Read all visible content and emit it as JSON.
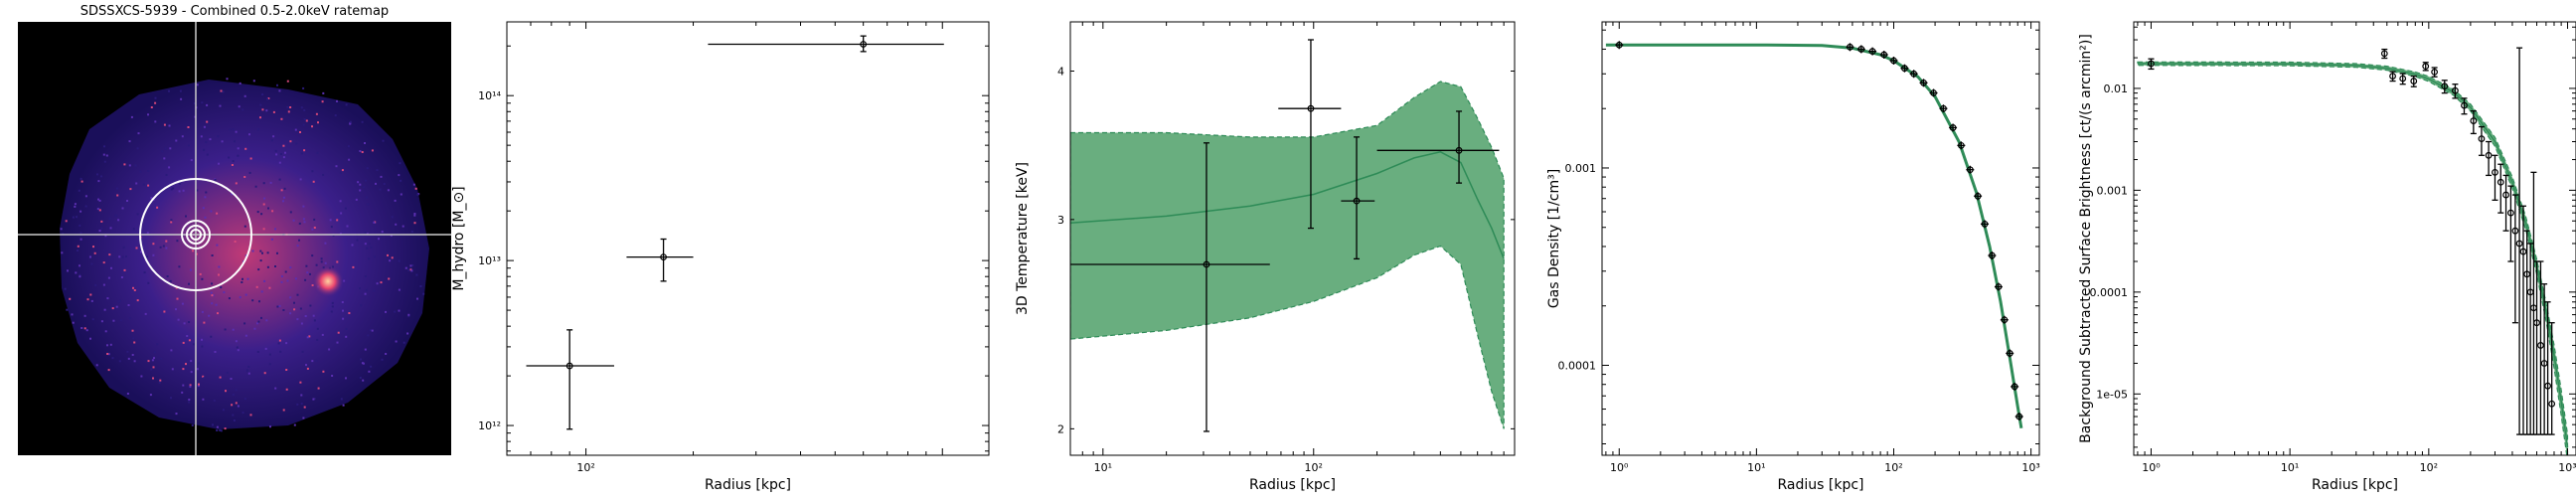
{
  "colors": {
    "model": "#2e8b57",
    "band": "#69ae7f",
    "band_edge": "#2e8b57",
    "points": "#000000",
    "crosshair": "#cccccc",
    "circle": "#ffffff"
  },
  "chart_data": [
    {
      "type": "image",
      "title": "SDSSXCS-5939 - Combined 0.5-2.0keV ratemap",
      "colormap": "magma"
    },
    {
      "type": "scatter",
      "xlabel": "Radius [kpc]",
      "ylabel": "M_hydro [M_⊙]",
      "xscale": "log",
      "yscale": "log",
      "xlim": [
        60,
        1350
      ],
      "ylim": [
        660000000000.0,
        280000000000000.0
      ],
      "xticks": [
        {
          "v": 100,
          "label": "10²"
        }
      ],
      "yticks": [
        {
          "v": 1000000000000.0,
          "label": "10¹²"
        },
        {
          "v": 10000000000000.0,
          "label": "10¹³"
        },
        {
          "v": 100000000000000.0,
          "label": "10¹⁴"
        }
      ],
      "points": [
        {
          "x": 90,
          "xlo": 68,
          "xhi": 120,
          "y": 2300000000000.0,
          "ylo": 950000000000.0,
          "yhi": 3800000000000.0
        },
        {
          "x": 165,
          "xlo": 130,
          "xhi": 200,
          "y": 10500000000000.0,
          "ylo": 7500000000000.0,
          "yhi": 13500000000000.0
        },
        {
          "x": 600,
          "xlo": 220,
          "xhi": 1010,
          "y": 205000000000000.0,
          "ylo": 185000000000000.0,
          "yhi": 230000000000000.0
        }
      ]
    },
    {
      "type": "line",
      "xlabel": "Radius [kpc]",
      "ylabel": "3D Temperature [keV]",
      "xscale": "log",
      "yscale": "log",
      "xlim": [
        7,
        900
      ],
      "ylim": [
        1.9,
        4.4
      ],
      "xticks": [
        {
          "v": 10,
          "label": "10¹"
        },
        {
          "v": 100,
          "label": "10²"
        }
      ],
      "yticks": [
        {
          "v": 2,
          "label": "2"
        },
        {
          "v": 3,
          "label": "3"
        },
        {
          "v": 4,
          "label": "4"
        }
      ],
      "model": {
        "x": [
          7,
          20,
          50,
          100,
          200,
          300,
          400,
          500,
          600,
          700,
          800
        ],
        "y": [
          2.98,
          3.02,
          3.08,
          3.15,
          3.28,
          3.38,
          3.42,
          3.35,
          3.12,
          2.95,
          2.78
        ],
        "lo": [
          2.38,
          2.42,
          2.48,
          2.56,
          2.68,
          2.8,
          2.85,
          2.75,
          2.4,
          2.15,
          2.0
        ],
        "hi": [
          3.55,
          3.55,
          3.52,
          3.52,
          3.6,
          3.8,
          3.92,
          3.88,
          3.65,
          3.45,
          3.25
        ]
      },
      "points": [
        {
          "x": 31,
          "xlo": 7,
          "xhi": 62,
          "y": 2.75,
          "ylo": 1.99,
          "yhi": 3.48
        },
        {
          "x": 97,
          "xlo": 68,
          "xhi": 135,
          "y": 3.72,
          "ylo": 2.95,
          "yhi": 4.25
        },
        {
          "x": 160,
          "xlo": 135,
          "xhi": 195,
          "y": 3.11,
          "ylo": 2.78,
          "yhi": 3.52
        },
        {
          "x": 490,
          "xlo": 200,
          "xhi": 760,
          "y": 3.43,
          "ylo": 3.22,
          "yhi": 3.7
        }
      ]
    },
    {
      "type": "line",
      "xlabel": "Radius [kpc]",
      "ylabel": "Gas Density [1/cm³]",
      "xscale": "log",
      "yscale": "log",
      "xlim": [
        0.75,
        1150
      ],
      "ylim": [
        3.5e-05,
        0.0055
      ],
      "xticks": [
        {
          "v": 1,
          "label": "10⁰"
        },
        {
          "v": 10,
          "label": "10¹"
        },
        {
          "v": 100,
          "label": "10²"
        },
        {
          "v": 1000,
          "label": "10³"
        }
      ],
      "yticks": [
        {
          "v": 0.0001,
          "label": "0.0001"
        },
        {
          "v": 0.001,
          "label": "0.001"
        }
      ],
      "model": {
        "x": [
          0.8,
          1,
          10,
          30,
          50,
          80,
          100,
          150,
          200,
          300,
          400,
          500,
          600,
          700,
          800,
          850
        ],
        "y": [
          0.0042,
          0.0042,
          0.0042,
          0.00418,
          0.00405,
          0.00375,
          0.0035,
          0.0029,
          0.0023,
          0.00135,
          0.00075,
          0.0004,
          0.00021,
          0.00011,
          6.2e-05,
          4.8e-05
        ]
      },
      "points": [
        {
          "x": 1,
          "y": 0.0042
        },
        {
          "x": 48,
          "y": 0.0041
        },
        {
          "x": 58,
          "y": 0.004
        },
        {
          "x": 70,
          "y": 0.0039
        },
        {
          "x": 85,
          "y": 0.00375
        },
        {
          "x": 100,
          "y": 0.0035
        },
        {
          "x": 120,
          "y": 0.0032
        },
        {
          "x": 140,
          "y": 0.003
        },
        {
          "x": 165,
          "y": 0.0027
        },
        {
          "x": 195,
          "y": 0.0024
        },
        {
          "x": 230,
          "y": 0.002
        },
        {
          "x": 270,
          "y": 0.0016
        },
        {
          "x": 310,
          "y": 0.0013
        },
        {
          "x": 360,
          "y": 0.00098
        },
        {
          "x": 410,
          "y": 0.00072
        },
        {
          "x": 460,
          "y": 0.00052
        },
        {
          "x": 520,
          "y": 0.00036
        },
        {
          "x": 580,
          "y": 0.00025
        },
        {
          "x": 640,
          "y": 0.00017
        },
        {
          "x": 700,
          "y": 0.000115
        },
        {
          "x": 760,
          "y": 7.8e-05
        },
        {
          "x": 820,
          "y": 5.5e-05
        }
      ]
    },
    {
      "type": "line",
      "xlabel": "Radius [kpc]",
      "ylabel": "Background Subtracted Surface Brightness [ct/(s arcmin²)]",
      "xscale": "log",
      "yscale": "log",
      "xlim": [
        0.75,
        1150
      ],
      "ylim": [
        2.5e-06,
        0.045
      ],
      "xticks": [
        {
          "v": 1,
          "label": "10⁰"
        },
        {
          "v": 10,
          "label": "10¹"
        },
        {
          "v": 100,
          "label": "10²"
        },
        {
          "v": 1000,
          "label": "10³"
        }
      ],
      "yticks": [
        {
          "v": 1e-05,
          "label": "1e-05"
        },
        {
          "v": 0.0001,
          "label": "0.0001"
        },
        {
          "v": 0.001,
          "label": "0.001"
        },
        {
          "v": 0.01,
          "label": "0.01"
        }
      ],
      "model": {
        "x": [
          0.8,
          1,
          10,
          30,
          50,
          80,
          100,
          150,
          200,
          300,
          400,
          500,
          600,
          700,
          800,
          900,
          1000
        ],
        "y": [
          0.0175,
          0.0175,
          0.0174,
          0.0168,
          0.0158,
          0.0138,
          0.0124,
          0.0092,
          0.0065,
          0.003,
          0.0012,
          0.00048,
          0.00018,
          6.5e-05,
          2.4e-05,
          8.5e-06,
          3e-06
        ],
        "lo": [
          0.0168,
          0.0168,
          0.0167,
          0.0161,
          0.0151,
          0.0131,
          0.0117,
          0.0086,
          0.006,
          0.0027,
          0.00105,
          0.00041,
          0.00015,
          5.2e-05,
          1.8e-05,
          6.2e-06,
          2.2e-06
        ],
        "hi": [
          0.0182,
          0.0182,
          0.0181,
          0.0175,
          0.0165,
          0.0145,
          0.0131,
          0.0098,
          0.007,
          0.0033,
          0.00135,
          0.00055,
          0.00021,
          7.8e-05,
          3e-05,
          1.1e-05,
          4e-06
        ]
      },
      "points": [
        {
          "x": 1,
          "y": 0.0175,
          "ylo": 0.0155,
          "yhi": 0.0195
        },
        {
          "x": 48,
          "y": 0.022,
          "ylo": 0.0198,
          "yhi": 0.0242
        },
        {
          "x": 55,
          "y": 0.0132,
          "ylo": 0.0118,
          "yhi": 0.0146
        },
        {
          "x": 65,
          "y": 0.0125,
          "ylo": 0.011,
          "yhi": 0.014
        },
        {
          "x": 78,
          "y": 0.0118,
          "ylo": 0.0104,
          "yhi": 0.0132
        },
        {
          "x": 95,
          "y": 0.0165,
          "ylo": 0.015,
          "yhi": 0.018
        },
        {
          "x": 110,
          "y": 0.0145,
          "ylo": 0.013,
          "yhi": 0.016
        },
        {
          "x": 130,
          "y": 0.0105,
          "ylo": 0.009,
          "yhi": 0.012
        },
        {
          "x": 155,
          "y": 0.0095,
          "ylo": 0.008,
          "yhi": 0.011
        },
        {
          "x": 180,
          "y": 0.0068,
          "ylo": 0.0056,
          "yhi": 0.008
        },
        {
          "x": 210,
          "y": 0.0048,
          "ylo": 0.0036,
          "yhi": 0.006
        },
        {
          "x": 240,
          "y": 0.0032,
          "ylo": 0.0022,
          "yhi": 0.0042
        },
        {
          "x": 270,
          "y": 0.0022,
          "ylo": 0.0014,
          "yhi": 0.003
        },
        {
          "x": 300,
          "y": 0.0015,
          "ylo": 0.0008,
          "yhi": 0.0022
        },
        {
          "x": 330,
          "y": 0.0012,
          "ylo": 0.0006,
          "yhi": 0.0018
        },
        {
          "x": 360,
          "y": 0.0009,
          "ylo": 0.0004,
          "yhi": 0.0014
        },
        {
          "x": 390,
          "y": 0.0006,
          "ylo": 0.0002,
          "yhi": 0.0011
        },
        {
          "x": 420,
          "y": 0.0004,
          "ylo": 5e-05,
          "yhi": 0.0009
        },
        {
          "x": 450,
          "y": 0.0003,
          "ylo": 4e-06,
          "yhi": 0.025
        },
        {
          "x": 480,
          "y": 0.00025,
          "ylo": 4e-06,
          "yhi": 0.0007
        },
        {
          "x": 510,
          "y": 0.00015,
          "ylo": 4e-06,
          "yhi": 0.0004
        },
        {
          "x": 540,
          "y": 0.0001,
          "ylo": 4e-06,
          "yhi": 0.0003
        },
        {
          "x": 570,
          "y": 7e-05,
          "ylo": 4e-06,
          "yhi": 0.0015
        },
        {
          "x": 600,
          "y": 5e-05,
          "ylo": 4e-06,
          "yhi": 0.0002
        },
        {
          "x": 640,
          "y": 3e-05,
          "ylo": 4e-06,
          "yhi": 0.0002
        },
        {
          "x": 680,
          "y": 2e-05,
          "ylo": 4e-06,
          "yhi": 0.00012
        },
        {
          "x": 720,
          "y": 1.2e-05,
          "ylo": 4e-06,
          "yhi": 8e-05
        },
        {
          "x": 770,
          "y": 8e-06,
          "ylo": 4e-06,
          "yhi": 5e-05
        }
      ]
    }
  ]
}
